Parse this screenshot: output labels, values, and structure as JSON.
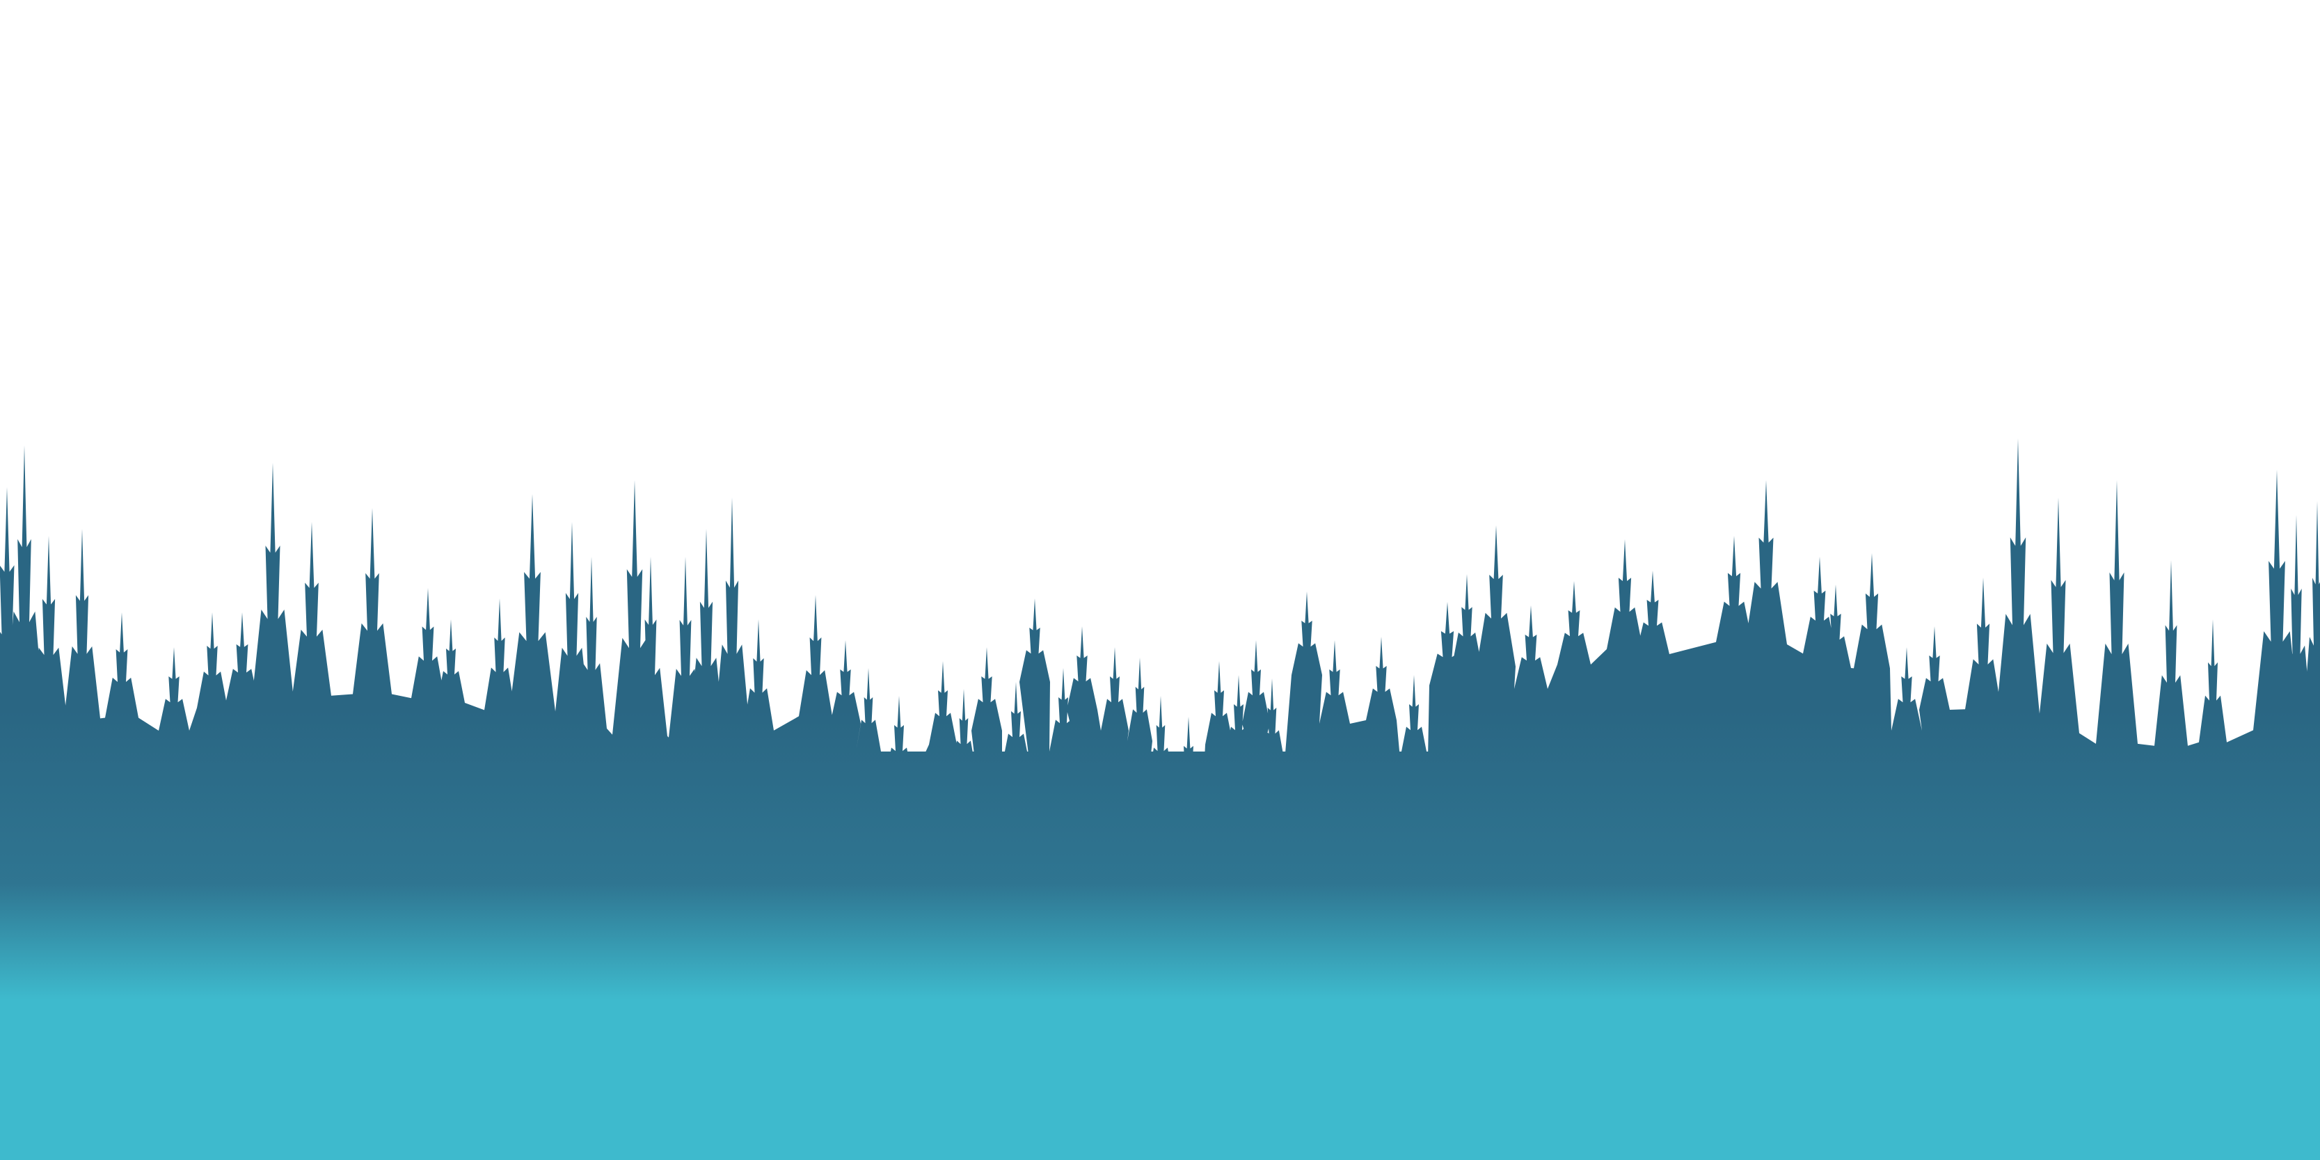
{
  "scene": {
    "subject": "forest-silhouette-landscape",
    "colors": {
      "sky": "#ffffff",
      "forest_dark": "#2a6683",
      "forest_mid": "#2f7591",
      "ground_light": "#3ebacd"
    }
  }
}
